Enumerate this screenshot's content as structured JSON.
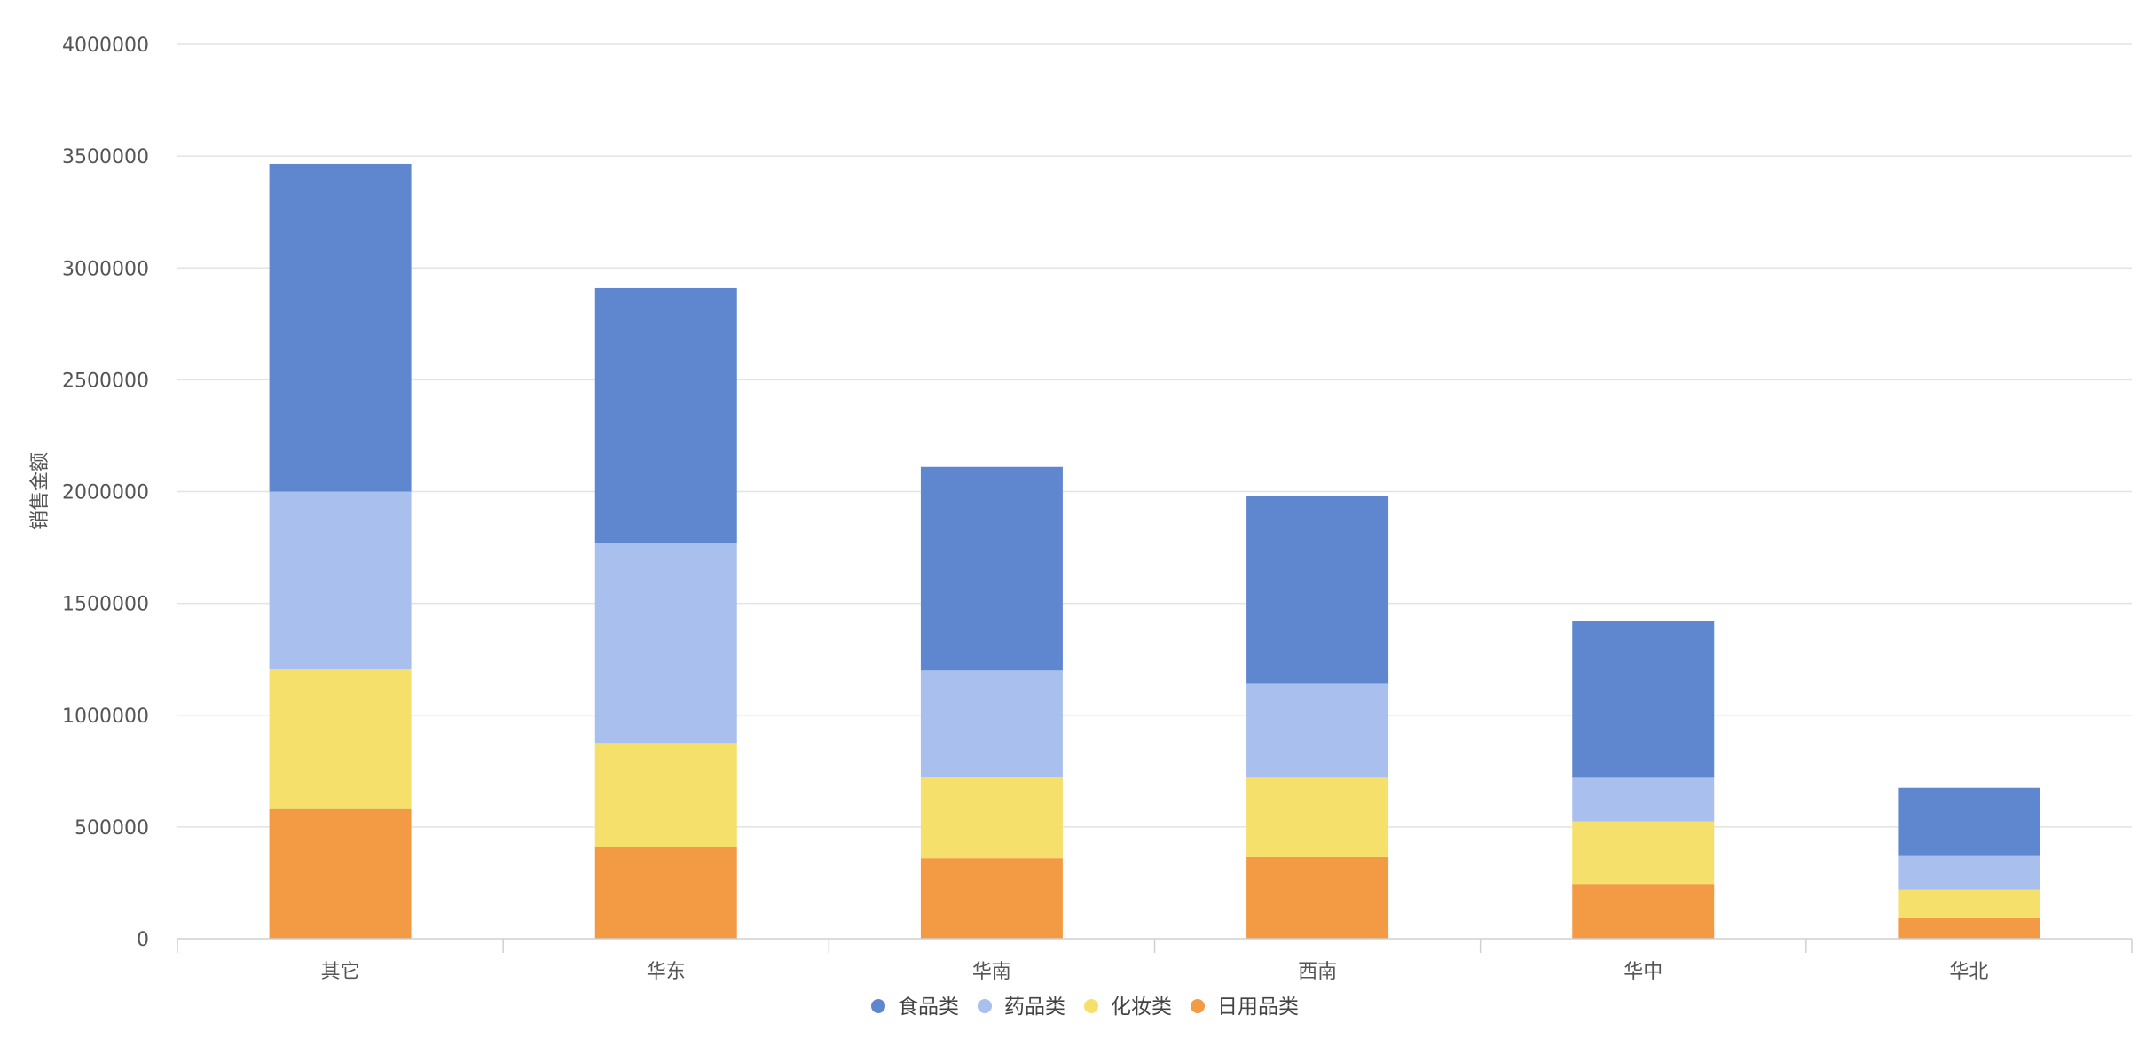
{
  "chart_data": {
    "type": "bar",
    "stacked": true,
    "title": "",
    "xlabel": "",
    "ylabel": "销售金额",
    "ylim": [
      0,
      4000000
    ],
    "yticks": [
      0,
      500000,
      1000000,
      1500000,
      2000000,
      2500000,
      3000000,
      3500000,
      4000000
    ],
    "grid": true,
    "legend_position": "bottom-center",
    "categories": [
      "其它",
      "华东",
      "华南",
      "西南",
      "华中",
      "华北"
    ],
    "series": [
      {
        "name": "日用品类",
        "color": "#F39A45",
        "values": [
          580000,
          410000,
          360000,
          365000,
          245000,
          95000
        ]
      },
      {
        "name": "化妆类",
        "color": "#F6E06C",
        "values": [
          625000,
          465000,
          365000,
          355000,
          280000,
          125000
        ]
      },
      {
        "name": "药品类",
        "color": "#A9BFEE",
        "values": [
          795000,
          895000,
          475000,
          420000,
          195000,
          150000
        ]
      },
      {
        "name": "食品类",
        "color": "#5F87CF",
        "values": [
          1465000,
          1140000,
          910000,
          840000,
          700000,
          305000
        ]
      }
    ],
    "legend_order": [
      "食品类",
      "药品类",
      "化妆类",
      "日用品类"
    ]
  }
}
